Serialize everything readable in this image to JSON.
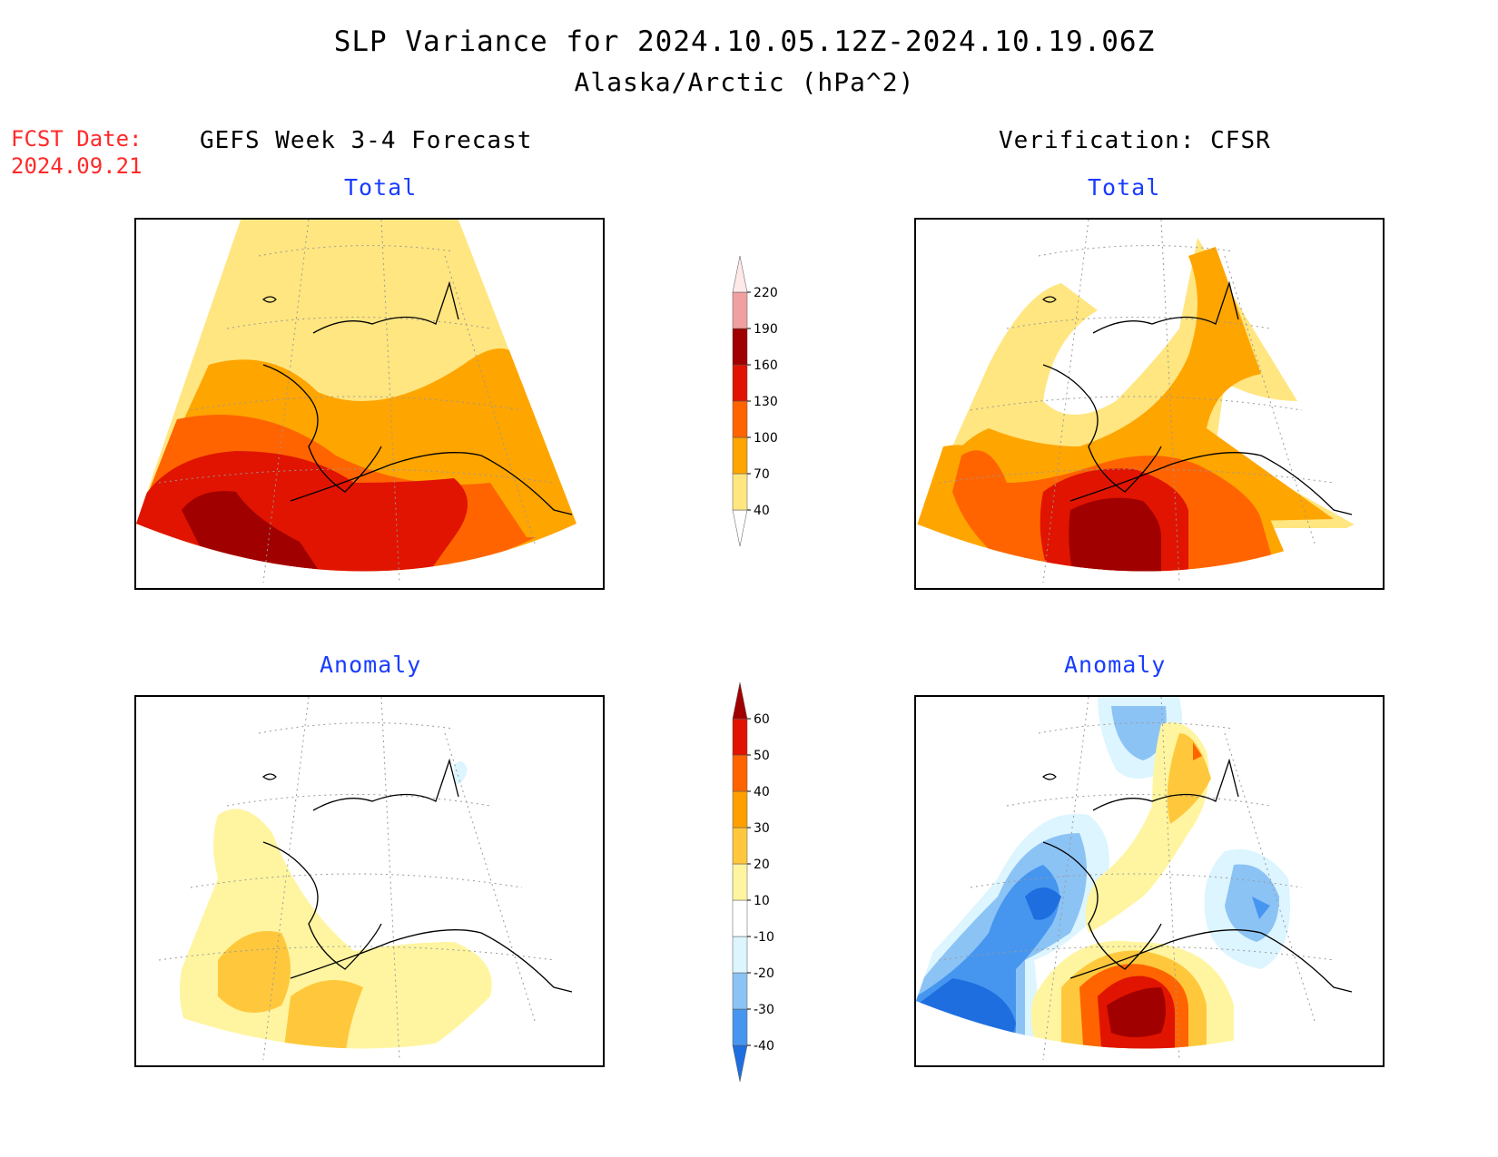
{
  "header": {
    "title": "SLP Variance for 2024.10.05.12Z-2024.10.19.06Z",
    "subtitle": "Alaska/Arctic (hPa^2)",
    "fcst_label": "FCST Date:",
    "fcst_date": "2024.09.21"
  },
  "columns": {
    "left": "GEFS Week 3-4 Forecast",
    "right": "Verification: CFSR"
  },
  "panels": {
    "forecast_total_title": "Total",
    "forecast_anomaly_title": "Anomaly",
    "verif_total_title": "Total",
    "verif_anomaly_title": "Anomaly"
  },
  "colorbars": {
    "total": {
      "labels": [
        "40",
        "70",
        "100",
        "130",
        "160",
        "190",
        "220"
      ],
      "colors": [
        "#ffffff",
        "#ffe680",
        "#ffa500",
        "#ff6400",
        "#e01400",
        "#a00000",
        "#f0a0a0",
        "#ffe8e8"
      ]
    },
    "anomaly": {
      "labels": [
        "-40",
        "-30",
        "-20",
        "-10",
        "10",
        "20",
        "30",
        "40",
        "50",
        "60"
      ],
      "colors": [
        "#1e6ee0",
        "#4696f0",
        "#8cc3f5",
        "#dcf5ff",
        "#ffffff",
        "#fff5a0",
        "#ffc83c",
        "#ffa000",
        "#ff6400",
        "#e01400",
        "#a00000"
      ]
    }
  }
}
